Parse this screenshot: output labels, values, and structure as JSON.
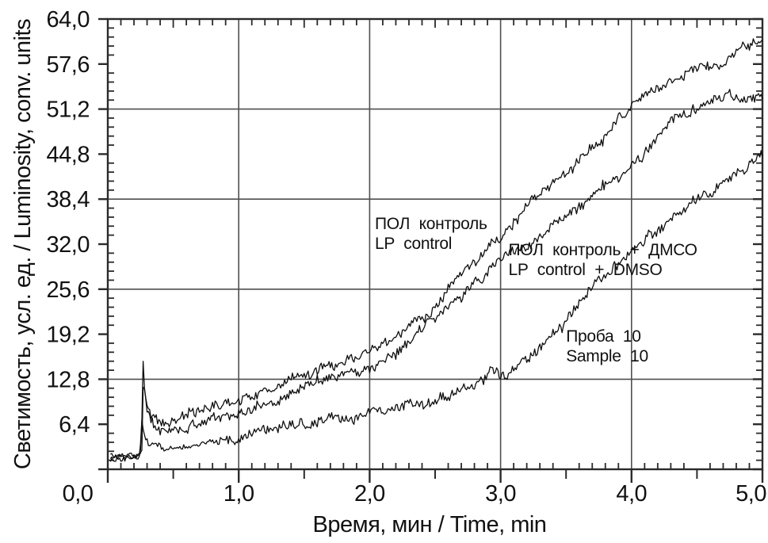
{
  "figure": {
    "background": "#ffffff",
    "text_color": "#111111",
    "grid_color": "#4f4f4f",
    "axis_color": "#2b2b2b",
    "curve_color": "#0f0f0f"
  },
  "chart_data": {
    "type": "line",
    "title": "",
    "xlabel": "Время, мин / Time, min",
    "ylabel": "Светимость, усл. ед. / Luminosity, conv. units",
    "xlim": [
      0,
      5
    ],
    "ylim": [
      0,
      64
    ],
    "grid": true,
    "legend_position": "inline-annotations",
    "x_tick_values": [
      0,
      1,
      2,
      3,
      4,
      5
    ],
    "x_tick_labels": [
      "0,0",
      "1,0",
      "2,0",
      "3,0",
      "4,0",
      "5,0"
    ],
    "y_tick_values": [
      0,
      6.4,
      12.8,
      19.2,
      25.6,
      32.0,
      38.4,
      44.8,
      51.2,
      57.6,
      64.0
    ],
    "y_tick_labels": [
      "0,0",
      "6,4",
      "12,8",
      "19,2",
      "25,6",
      "32,0",
      "38,4",
      "44,8",
      "51,2",
      "57,6",
      "64,0"
    ],
    "x_minor_step": 0.1,
    "x_mid_step": 0.5,
    "y_minor_step": 1.28,
    "grid_x": [
      1,
      2,
      3,
      4
    ],
    "grid_y": [
      12.8,
      25.6,
      38.4,
      51.2
    ],
    "series": [
      {
        "name": "ПОЛ контроль / LP control",
        "keypoints": [
          [
            0.02,
            1.9
          ],
          [
            0.24,
            2.1
          ],
          [
            0.256,
            3.0
          ],
          [
            0.268,
            16.3
          ],
          [
            0.28,
            11.5
          ],
          [
            0.3,
            9.0
          ],
          [
            0.34,
            7.8
          ],
          [
            0.42,
            7.1
          ],
          [
            0.55,
            7.3
          ],
          [
            0.71,
            8.1
          ],
          [
            0.9,
            9.4
          ],
          [
            1.11,
            10.7
          ],
          [
            1.3,
            12.0
          ],
          [
            1.48,
            13.4
          ],
          [
            1.7,
            14.7
          ],
          [
            1.98,
            16.3
          ],
          [
            2.15,
            18.0
          ],
          [
            2.3,
            20.0
          ],
          [
            2.5,
            23.3
          ],
          [
            2.61,
            25.6
          ],
          [
            2.8,
            29.0
          ],
          [
            3.0,
            32.6
          ],
          [
            3.2,
            37.0
          ],
          [
            3.4,
            40.4
          ],
          [
            3.6,
            43.4
          ],
          [
            3.75,
            46.2
          ],
          [
            3.93,
            51.2
          ],
          [
            4.1,
            53.0
          ],
          [
            4.25,
            54.4
          ],
          [
            4.4,
            55.8
          ],
          [
            4.6,
            57.4
          ],
          [
            4.8,
            59.2
          ],
          [
            5.0,
            60.8
          ]
        ]
      },
      {
        "name": "ПОЛ контроль + ДМСО / LP control + DMSO",
        "keypoints": [
          [
            0.02,
            1.7
          ],
          [
            0.24,
            1.9
          ],
          [
            0.26,
            2.6
          ],
          [
            0.272,
            13.2
          ],
          [
            0.285,
            9.8
          ],
          [
            0.31,
            7.5
          ],
          [
            0.36,
            6.2
          ],
          [
            0.45,
            5.4
          ],
          [
            0.6,
            5.8
          ],
          [
            0.71,
            6.4
          ],
          [
            0.9,
            7.4
          ],
          [
            1.11,
            8.5
          ],
          [
            1.3,
            10.0
          ],
          [
            1.48,
            11.9
          ],
          [
            1.7,
            13.3
          ],
          [
            1.98,
            14.7
          ],
          [
            2.2,
            17.0
          ],
          [
            2.5,
            21.3
          ],
          [
            2.77,
            25.6
          ],
          [
            3.0,
            29.3
          ],
          [
            3.2,
            32.2
          ],
          [
            3.5,
            36.2
          ],
          [
            3.7,
            38.6
          ],
          [
            3.9,
            41.2
          ],
          [
            4.1,
            44.4
          ],
          [
            4.3,
            49.6
          ],
          [
            4.5,
            51.2
          ],
          [
            4.7,
            52.4
          ],
          [
            5.0,
            53.6
          ]
        ]
      },
      {
        "name": "Проба 10 / Sample 10",
        "keypoints": [
          [
            0.02,
            1.4
          ],
          [
            0.23,
            1.6
          ],
          [
            0.246,
            2.0
          ],
          [
            0.258,
            7.6
          ],
          [
            0.27,
            5.6
          ],
          [
            0.31,
            4.2
          ],
          [
            0.45,
            3.0
          ],
          [
            0.6,
            3.2
          ],
          [
            0.71,
            3.6
          ],
          [
            0.9,
            4.3
          ],
          [
            1.11,
            4.9
          ],
          [
            1.3,
            5.6
          ],
          [
            1.48,
            6.5
          ],
          [
            1.7,
            7.2
          ],
          [
            1.98,
            7.9
          ],
          [
            2.2,
            8.7
          ],
          [
            2.4,
            9.5
          ],
          [
            2.55,
            10.2
          ],
          [
            2.7,
            11.0
          ],
          [
            2.8,
            11.7
          ],
          [
            2.87,
            12.6
          ],
          [
            2.93,
            14.5
          ],
          [
            3.0,
            13.6
          ],
          [
            3.1,
            14.4
          ],
          [
            3.3,
            17.4
          ],
          [
            3.5,
            21.2
          ],
          [
            3.7,
            25.8
          ],
          [
            3.9,
            29.3
          ],
          [
            4.1,
            32.8
          ],
          [
            4.3,
            36.0
          ],
          [
            4.5,
            38.6
          ],
          [
            4.7,
            41.2
          ],
          [
            4.85,
            42.6
          ],
          [
            5.0,
            45.8
          ]
        ]
      }
    ],
    "annotations": [
      {
        "lines": [
          "ПОЛ контроль",
          "LP control"
        ],
        "x": 2.04,
        "y": 36.3
      },
      {
        "lines": [
          "ПОЛ контроль + ДМСО",
          "LP control + DMSO"
        ],
        "x": 3.06,
        "y": 32.6
      },
      {
        "lines": [
          "Проба 10",
          "Sample 10"
        ],
        "x": 3.5,
        "y": 20.3
      }
    ]
  }
}
